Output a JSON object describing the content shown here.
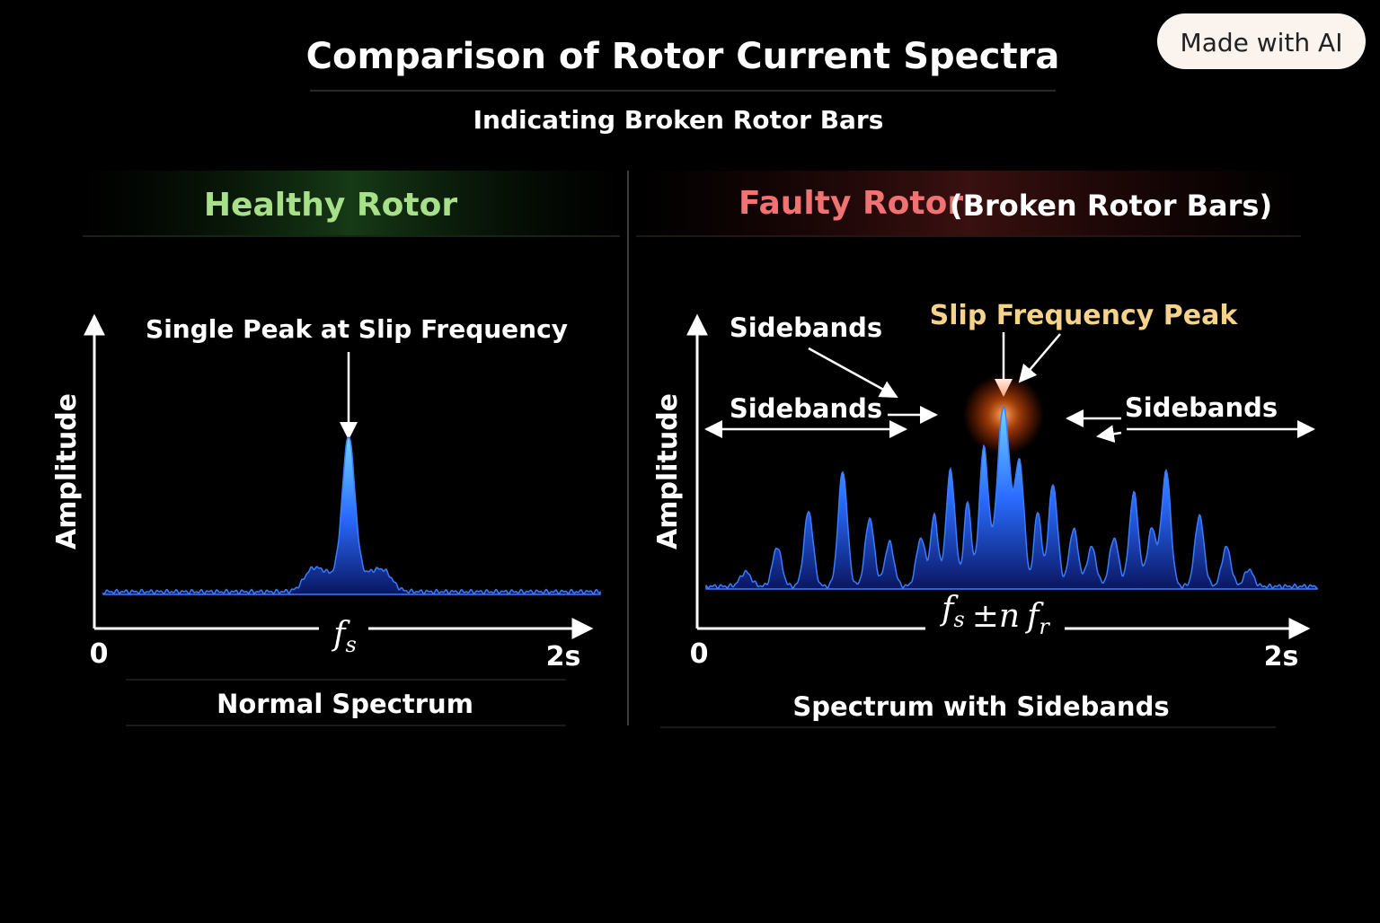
{
  "header": {
    "title": "Comparison of Rotor Current Spectra",
    "subtitle": "Indicating Broken Rotor Bars",
    "badge": "Made with AI"
  },
  "healthy": {
    "heading": "Healthy Rotor",
    "y_label": "Amplitude",
    "annotation": "Single Peak at Slip Frequency",
    "x_marker": {
      "base": "f",
      "sub": "s"
    },
    "x_start": "0",
    "x_end": "2s",
    "caption": "Normal Spectrum"
  },
  "faulty": {
    "heading": "Faulty Rotor",
    "heading_note": "(Broken Rotor Bars)",
    "y_label": "Amplitude",
    "sidebands": [
      "Sidebands",
      "Sidebands",
      "Sidebands"
    ],
    "peak_label": "Slip Frequency Peak",
    "x_marker": [
      {
        "base": "f",
        "sub": "s"
      },
      {
        "base": "±n"
      },
      {
        "base": "f",
        "sub": "r"
      }
    ],
    "x_start": "0",
    "x_end": "2s",
    "caption": "Spectrum with Sidebands"
  }
}
